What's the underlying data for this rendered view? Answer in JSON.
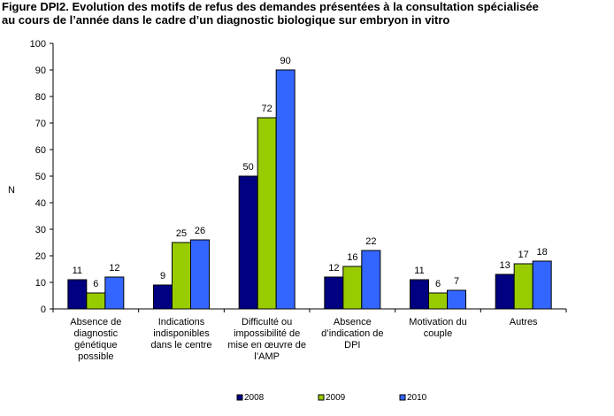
{
  "title": {
    "line1": "Figure DPI2. Evolution des motifs de refus des demandes présentées à la consultation spécialisée",
    "line2": "au cours de l’année dans le cadre d’un diagnostic biologique sur embryon in vitro"
  },
  "chart_data": {
    "type": "bar",
    "title": "Figure DPI2. Evolution des motifs de refus des demandes présentées à la consultation spécialisée au cours de l’année dans le cadre d’un diagnostic biologique sur embryon in vitro",
    "ylabel": "N",
    "xlabel": "",
    "ylim": [
      0,
      100
    ],
    "yticks": [
      0,
      10,
      20,
      30,
      40,
      50,
      60,
      70,
      80,
      90,
      100
    ],
    "grid": false,
    "legend_position": "bottom",
    "categories": [
      [
        "Absence de",
        "diagnostic",
        "génétique",
        "possible"
      ],
      [
        "Indications",
        "indisponibles",
        "dans le centre"
      ],
      [
        "Difficulté ou",
        "impossibilité de",
        "mise en œuvre de",
        "l’AMP"
      ],
      [
        "Absence",
        "d’indication de",
        "DPI"
      ],
      [
        "Motivation du",
        "couple"
      ],
      [
        "Autres"
      ]
    ],
    "series": [
      {
        "name": "2008",
        "color": "#000080",
        "values": [
          11,
          9,
          50,
          12,
          11,
          13
        ]
      },
      {
        "name": "2009",
        "color": "#99CC00",
        "values": [
          6,
          25,
          72,
          16,
          6,
          17
        ]
      },
      {
        "name": "2010",
        "color": "#3366FF",
        "values": [
          12,
          26,
          90,
          22,
          7,
          18
        ]
      }
    ]
  }
}
